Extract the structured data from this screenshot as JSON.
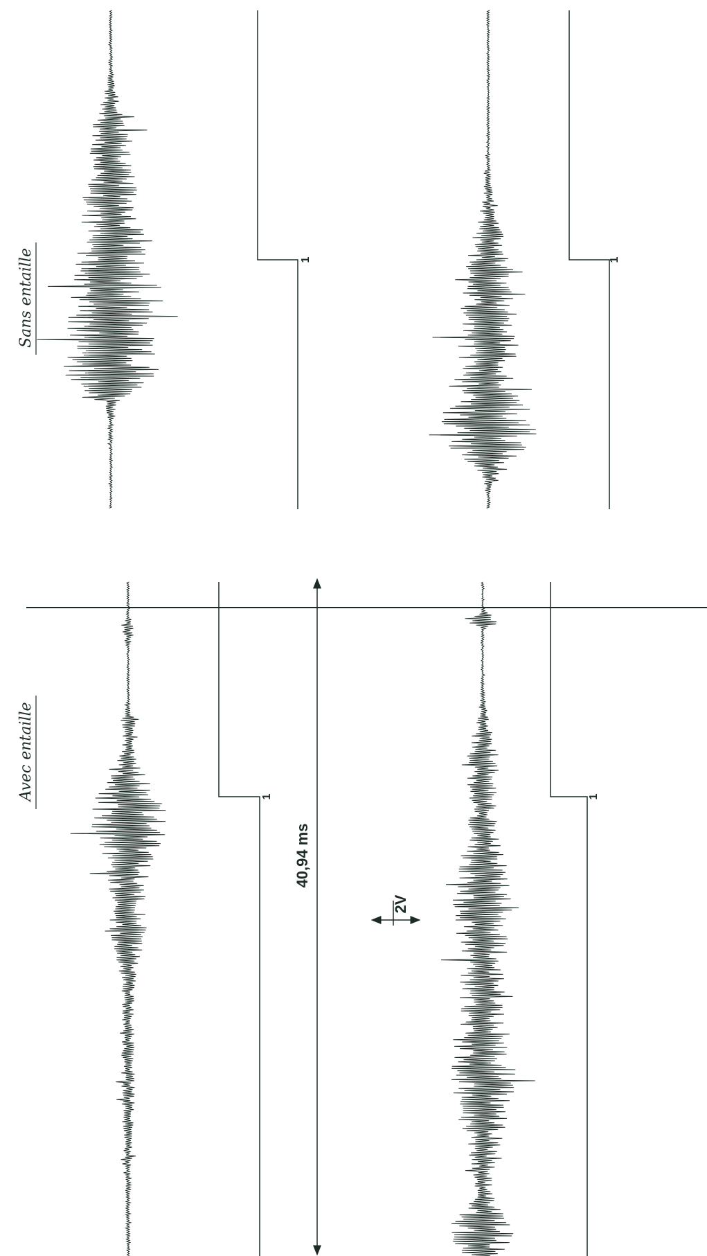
{
  "labels": {
    "without_notch": "Sans entaille",
    "with_notch": "Avec entaille"
  },
  "time_scale": "40,94 ms",
  "voltage_scale": "2V",
  "markers": [
    "1",
    "1",
    "1",
    "1"
  ]
}
